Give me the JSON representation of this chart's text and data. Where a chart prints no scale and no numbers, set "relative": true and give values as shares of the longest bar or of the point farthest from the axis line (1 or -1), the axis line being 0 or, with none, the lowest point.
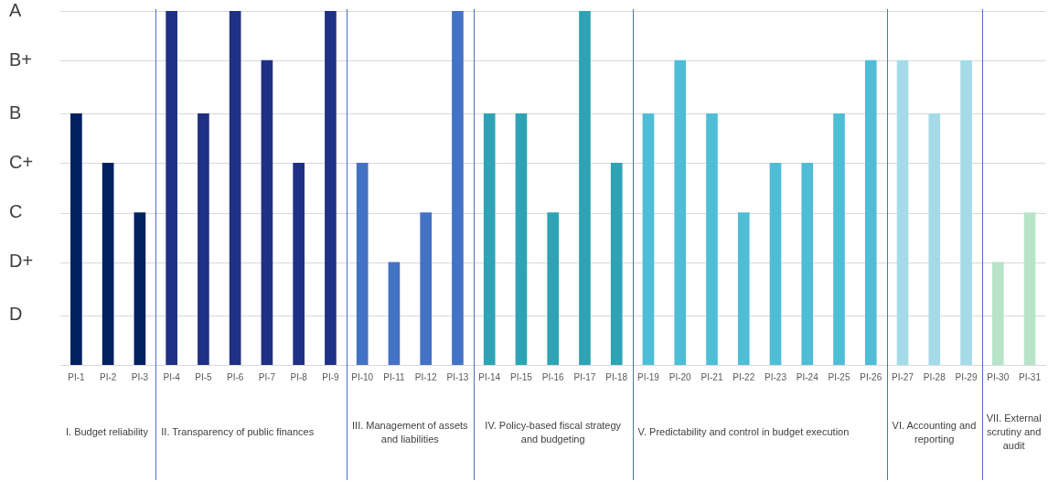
{
  "chart_data": {
    "type": "bar",
    "categories": [
      "PI-1",
      "PI-2",
      "PI-3",
      "PI-4",
      "PI-5",
      "PI-6",
      "PI-7",
      "PI-8",
      "PI-9",
      "PI-10",
      "PI-11",
      "PI-12",
      "PI-13",
      "PI-14",
      "PI-15",
      "PI-16",
      "PI-17",
      "PI-18",
      "PI-19",
      "PI-20",
      "PI-21",
      "PI-22",
      "PI-23",
      "PI-24",
      "PI-25",
      "PI-26",
      "PI-27",
      "PI-28",
      "PI-29",
      "PI-30",
      "PI-31"
    ],
    "values": [
      0.71,
      0.57,
      0.43,
      1,
      0.71,
      1,
      0.86,
      0.57,
      1,
      0.57,
      0.29,
      0.43,
      1,
      0.71,
      0.71,
      0.43,
      1,
      0.57,
      0.71,
      0.86,
      0.71,
      0.43,
      0.57,
      0.57,
      0.71,
      0.86,
      0.86,
      0.71,
      0.86,
      0.29,
      0.43
    ],
    "colors": [
      "#002060",
      "#002060",
      "#002060",
      "#1f3185",
      "#1f3185",
      "#1f3185",
      "#1f3185",
      "#1f3185",
      "#1f3185",
      "#4472c4",
      "#4472c4",
      "#4472c4",
      "#4472c4",
      "#2ea3b4",
      "#2ea3b4",
      "#2ea3b4",
      "#2ea3b4",
      "#2ea3b4",
      "#4fbdd6",
      "#4fbdd6",
      "#4fbdd6",
      "#4fbdd6",
      "#4fbdd6",
      "#4fbdd6",
      "#4fbdd6",
      "#4fbdd6",
      "#a5dbe8",
      "#a5dbe8",
      "#a5dbe8",
      "#b7e4c9",
      "#b7e4c9"
    ],
    "relative": true,
    "ref_lines": [
      {
        "axis": "y",
        "value": 1,
        "label": "A",
        "color": "#d9d9d9"
      },
      {
        "axis": "y",
        "value": 0.86,
        "label": "B+",
        "color": "#d9d9d9"
      },
      {
        "axis": "y",
        "value": 0.71,
        "label": "B",
        "color": "#d9d9d9"
      },
      {
        "axis": "y",
        "value": 0.57,
        "label": "C+",
        "color": "#d9d9d9"
      },
      {
        "axis": "y",
        "value": 0.43,
        "label": "C",
        "color": "#d9d9d9"
      },
      {
        "axis": "y",
        "value": 0.29,
        "label": "D+",
        "color": "#d9d9d9"
      },
      {
        "axis": "y",
        "value": 0.14,
        "label": "D",
        "color": "#d9d9d9"
      }
    ],
    "annotations": [
      "I. Budget reliability",
      "II. Transparency of public finances",
      "III. Management of assets and liabilities",
      "IV. Policy-based fiscal strategy and budgeting",
      "V. Predictability and control in budget execution",
      "VI. Accounting and reporting",
      "VII. External scrutiny and audit"
    ]
  }
}
